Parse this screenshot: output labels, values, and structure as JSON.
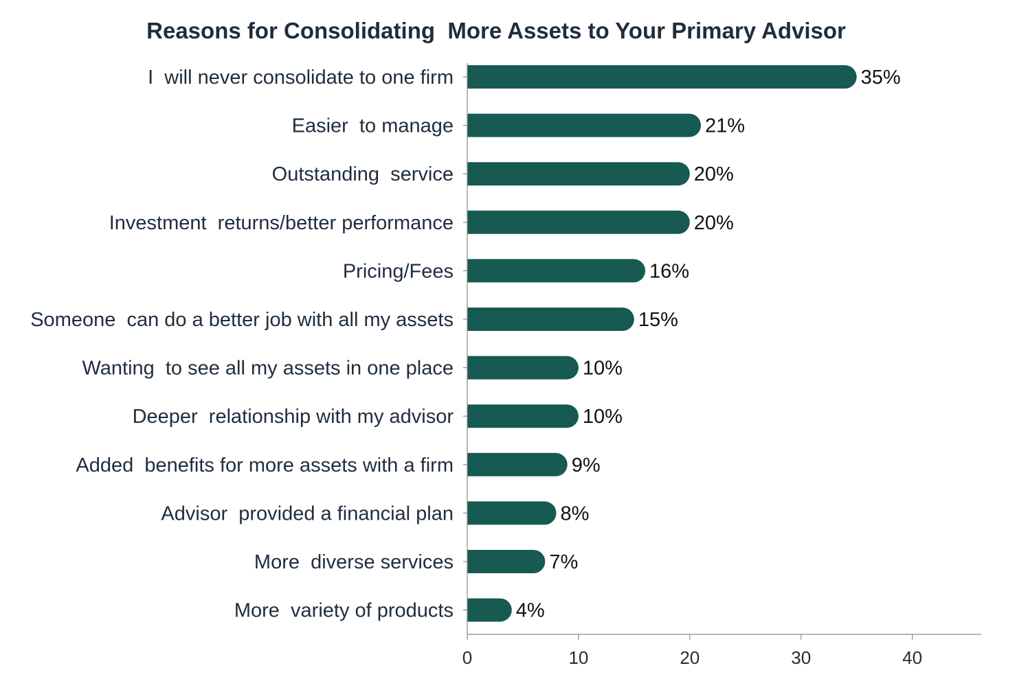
{
  "colors": {
    "bar": "#165a52",
    "text": "#1f2d3d",
    "axis": "#8a8a8a"
  },
  "chart_data": {
    "type": "bar",
    "orientation": "horizontal",
    "title": "Reasons for Consolidating  More Assets to Your Primary Advisor",
    "xlabel": "",
    "ylabel": "",
    "categories": [
      "I  will never consolidate to one firm",
      "Easier  to manage",
      "Outstanding  service",
      "Investment  returns/better performance",
      "Pricing/Fees",
      "Someone  can do a better job with all my assets",
      "Wanting  to see all my assets in one place",
      "Deeper  relationship with my advisor",
      "Added  benefits for more assets with a firm",
      "Advisor  provided a financial plan",
      "More  diverse services",
      "More  variety of products"
    ],
    "values": [
      35,
      21,
      20,
      20,
      16,
      15,
      10,
      10,
      9,
      8,
      7,
      4
    ],
    "data_labels": [
      "35%",
      "21%",
      "20%",
      "20%",
      "16%",
      "15%",
      "10%",
      "10%",
      "9%",
      "8%",
      "7%",
      "4%"
    ],
    "xlim": [
      0,
      46.2
    ],
    "x_ticks": [
      0,
      10,
      20,
      30,
      40
    ],
    "x_tick_labels": [
      "0",
      "10",
      "20",
      "30",
      "40"
    ],
    "grid": false,
    "legend": "none"
  }
}
